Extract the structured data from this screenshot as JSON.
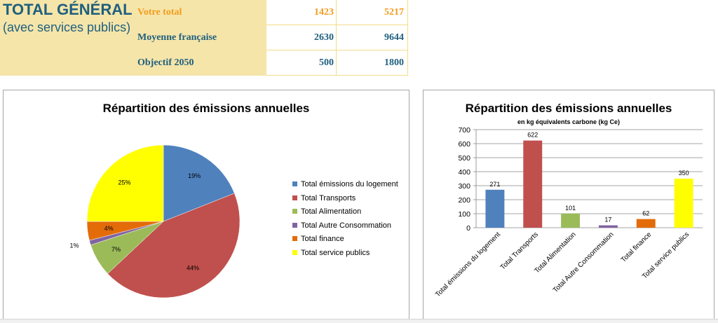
{
  "summary": {
    "title": "TOTAL GÉNÉRAL",
    "subtitle": "(avec services publics)",
    "rows": [
      {
        "label": "Votre total",
        "v1": "1423",
        "v2": "5217",
        "color": "#f39c1e"
      },
      {
        "label": "Moyenne française",
        "v1": "2630",
        "v2": "9644",
        "color": "#1f5f7f"
      },
      {
        "label": "Objectif 2050",
        "v1": "500",
        "v2": "1800",
        "color": "#1f5f7f"
      }
    ]
  },
  "chart_data": [
    {
      "type": "pie",
      "title": "Répartition des émissions annuelles",
      "categories": [
        "Total émissions du logement",
        "Total Transports",
        "Total Alimentation",
        "Total Autre Consommation",
        "Total finance",
        "Total service publics"
      ],
      "values": [
        19,
        44,
        7,
        1,
        4,
        25
      ],
      "labels": [
        "19%",
        "44%",
        "7%",
        "1%",
        "4%",
        "25%"
      ],
      "colors": [
        "#4f81bd",
        "#c0504d",
        "#9bbb59",
        "#8064a2",
        "#e36c09",
        "#ffff00"
      ],
      "legend": "right"
    },
    {
      "type": "bar",
      "title": "Répartition des émissions annuelles",
      "subtitle": "en kg équivalents carbone (kg Ce)",
      "categories": [
        "Total émissions du logement",
        "Total Transports",
        "Total Alimentation",
        "Total Autre Consommation",
        "Total finance",
        "Total service publics"
      ],
      "values": [
        271,
        622,
        101,
        17,
        62,
        350
      ],
      "colors": [
        "#4f81bd",
        "#c0504d",
        "#9bbb59",
        "#8064a2",
        "#e36c09",
        "#ffff00"
      ],
      "ylim": [
        0,
        700
      ],
      "yticks": [
        0,
        100,
        200,
        300,
        400,
        500,
        600,
        700
      ],
      "grid": true
    }
  ]
}
